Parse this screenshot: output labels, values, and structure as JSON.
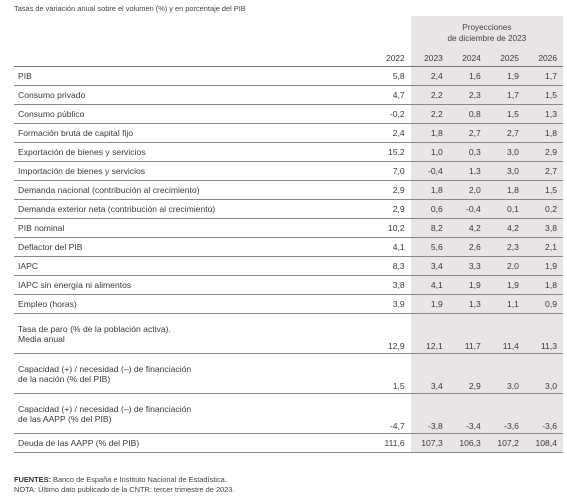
{
  "subtitle": "Tasas de variación anual sobre el volumen (%) y en porcentaje del PIB",
  "projections_header": {
    "line1": "Proyecciones",
    "line2": "de diciembre de 2023"
  },
  "years": [
    "2022",
    "2023",
    "2024",
    "2025",
    "2026"
  ],
  "rows": [
    {
      "label": [
        "PIB"
      ],
      "values": [
        "5,8",
        "2,4",
        "1,6",
        "1,9",
        "1,7"
      ]
    },
    {
      "label": [
        "Consumo privado"
      ],
      "values": [
        "4,7",
        "2,2",
        "2,3",
        "1,7",
        "1,5"
      ]
    },
    {
      "label": [
        "Consumo público"
      ],
      "values": [
        "-0,2",
        "2,2",
        "0,8",
        "1,5",
        "1,3"
      ]
    },
    {
      "label": [
        "Formación bruta de capital fijo"
      ],
      "values": [
        "2,4",
        "1,8",
        "2,7",
        "2,7",
        "1,8"
      ]
    },
    {
      "label": [
        "Exportación de bienes y servicios"
      ],
      "values": [
        "15,2",
        "1,0",
        "0,3",
        "3,0",
        "2,9"
      ]
    },
    {
      "label": [
        "Importación de bienes y servicios"
      ],
      "values": [
        "7,0",
        "-0,4",
        "1,3",
        "3,0",
        "2,7"
      ]
    },
    {
      "label": [
        "Demanda nacional (contribución al crecimiento)"
      ],
      "values": [
        "2,9",
        "1,8",
        "2,0",
        "1,8",
        "1,5"
      ]
    },
    {
      "label": [
        "Demanda exterior neta (contribución al crecimiento)"
      ],
      "values": [
        "2,9",
        "0,6",
        "-0,4",
        "0,1",
        "0,2"
      ]
    },
    {
      "label": [
        "PIB nominal"
      ],
      "values": [
        "10,2",
        "8,2",
        "4,2",
        "4,2",
        "3,8"
      ]
    },
    {
      "label": [
        "Deflactor del PIB"
      ],
      "values": [
        "4,1",
        "5,6",
        "2,6",
        "2,3",
        "2,1"
      ]
    },
    {
      "label": [
        "IAPC"
      ],
      "values": [
        "8,3",
        "3,4",
        "3,3",
        "2,0",
        "1,9"
      ]
    },
    {
      "label": [
        "IAPC sin energía ni alimentos"
      ],
      "values": [
        "3,8",
        "4,1",
        "1,9",
        "1,9",
        "1,8"
      ]
    },
    {
      "label": [
        "Empleo (horas)"
      ],
      "values": [
        "3,9",
        "1,9",
        "1,3",
        "1,1",
        "0,9"
      ]
    },
    {
      "label": [
        "Tasa de paro (% de la población activa).",
        "Media anual"
      ],
      "values": [
        "12,9",
        "12,1",
        "11,7",
        "11,4",
        "11,3"
      ]
    },
    {
      "label": [
        "Capacidad (+) / necesidad (–) de financiación",
        "de la nación (% del PIB)"
      ],
      "values": [
        "1,5",
        "3,4",
        "2,9",
        "3,0",
        "3,0"
      ]
    },
    {
      "label": [
        "Capacidad (+) / necesidad (–) de financiación",
        "de las AAPP (% del PIB)"
      ],
      "values": [
        "-4,7",
        "-3,8",
        "-3,4",
        "-3,6",
        "-3,6"
      ]
    },
    {
      "label": [
        "Deuda de las AAPP (% del PIB)"
      ],
      "values": [
        "111,6",
        "107,3",
        "106,3",
        "107,2",
        "108,4"
      ]
    }
  ],
  "notes": {
    "sources_label": "FUENTES:",
    "sources_text": " Banco de España e Instituto Nacional de Estadística.",
    "note_text": "NOTA: Último dato publicado de la CNTR: tercer trimestre de 2023."
  },
  "colors": {
    "projection_band": "#e9e4e5",
    "rule": "#8a8a8a"
  }
}
